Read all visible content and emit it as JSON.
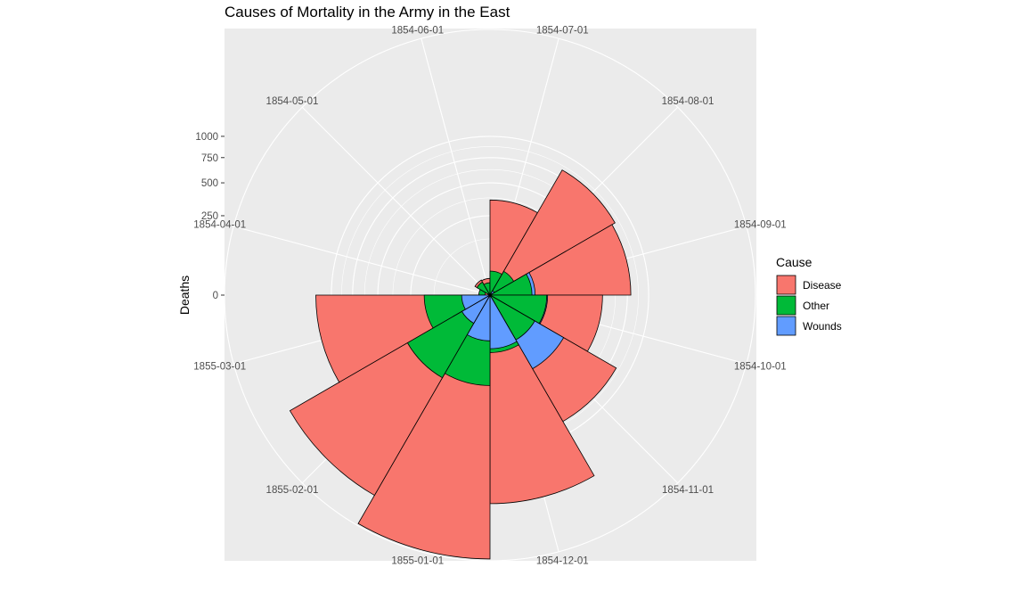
{
  "chart_data": {
    "type": "polar-bar",
    "title": "Causes of Mortality in the Army in the East",
    "ylabel": "Deaths",
    "y_scale": "sqrt",
    "y_ticks": [
      0,
      250,
      500,
      750,
      1000
    ],
    "y_tick_labels": [
      "0",
      "250",
      "500",
      "750",
      "1000"
    ],
    "ylim": [
      0,
      2800
    ],
    "panel_background": "#ebebeb",
    "grid": true,
    "categories": [
      "1854-04-01",
      "1854-05-01",
      "1854-06-01",
      "1854-07-01",
      "1854-08-01",
      "1854-09-01",
      "1854-10-01",
      "1854-11-01",
      "1854-12-01",
      "1855-01-01",
      "1855-02-01",
      "1855-03-01"
    ],
    "angle_labels": [
      "1854-06-01",
      "1854-07-01",
      "1854-08-01",
      "1854-09-01",
      "1854-10-01",
      "1854-11-01",
      "1854-12-01",
      "1855-01-01",
      "1855-02-01",
      "1855-03-01",
      "1854-04-01",
      "1854-05-01"
    ],
    "series": [
      {
        "name": "Disease",
        "color": "#F8766D",
        "values": [
          1,
          12,
          11,
          359,
          828,
          788,
          503,
          844,
          1725,
          2761,
          2120,
          1205
        ]
      },
      {
        "name": "Other",
        "color": "#00BA38",
        "values": [
          5,
          9,
          6,
          23,
          30,
          70,
          128,
          106,
          131,
          324,
          361,
          172
        ]
      },
      {
        "name": "Wounds",
        "color": "#619CFF",
        "values": [
          0,
          0,
          0,
          0,
          1,
          81,
          132,
          287,
          114,
          83,
          42,
          32
        ]
      }
    ],
    "legend_title": "Cause",
    "legend_position": "right"
  }
}
